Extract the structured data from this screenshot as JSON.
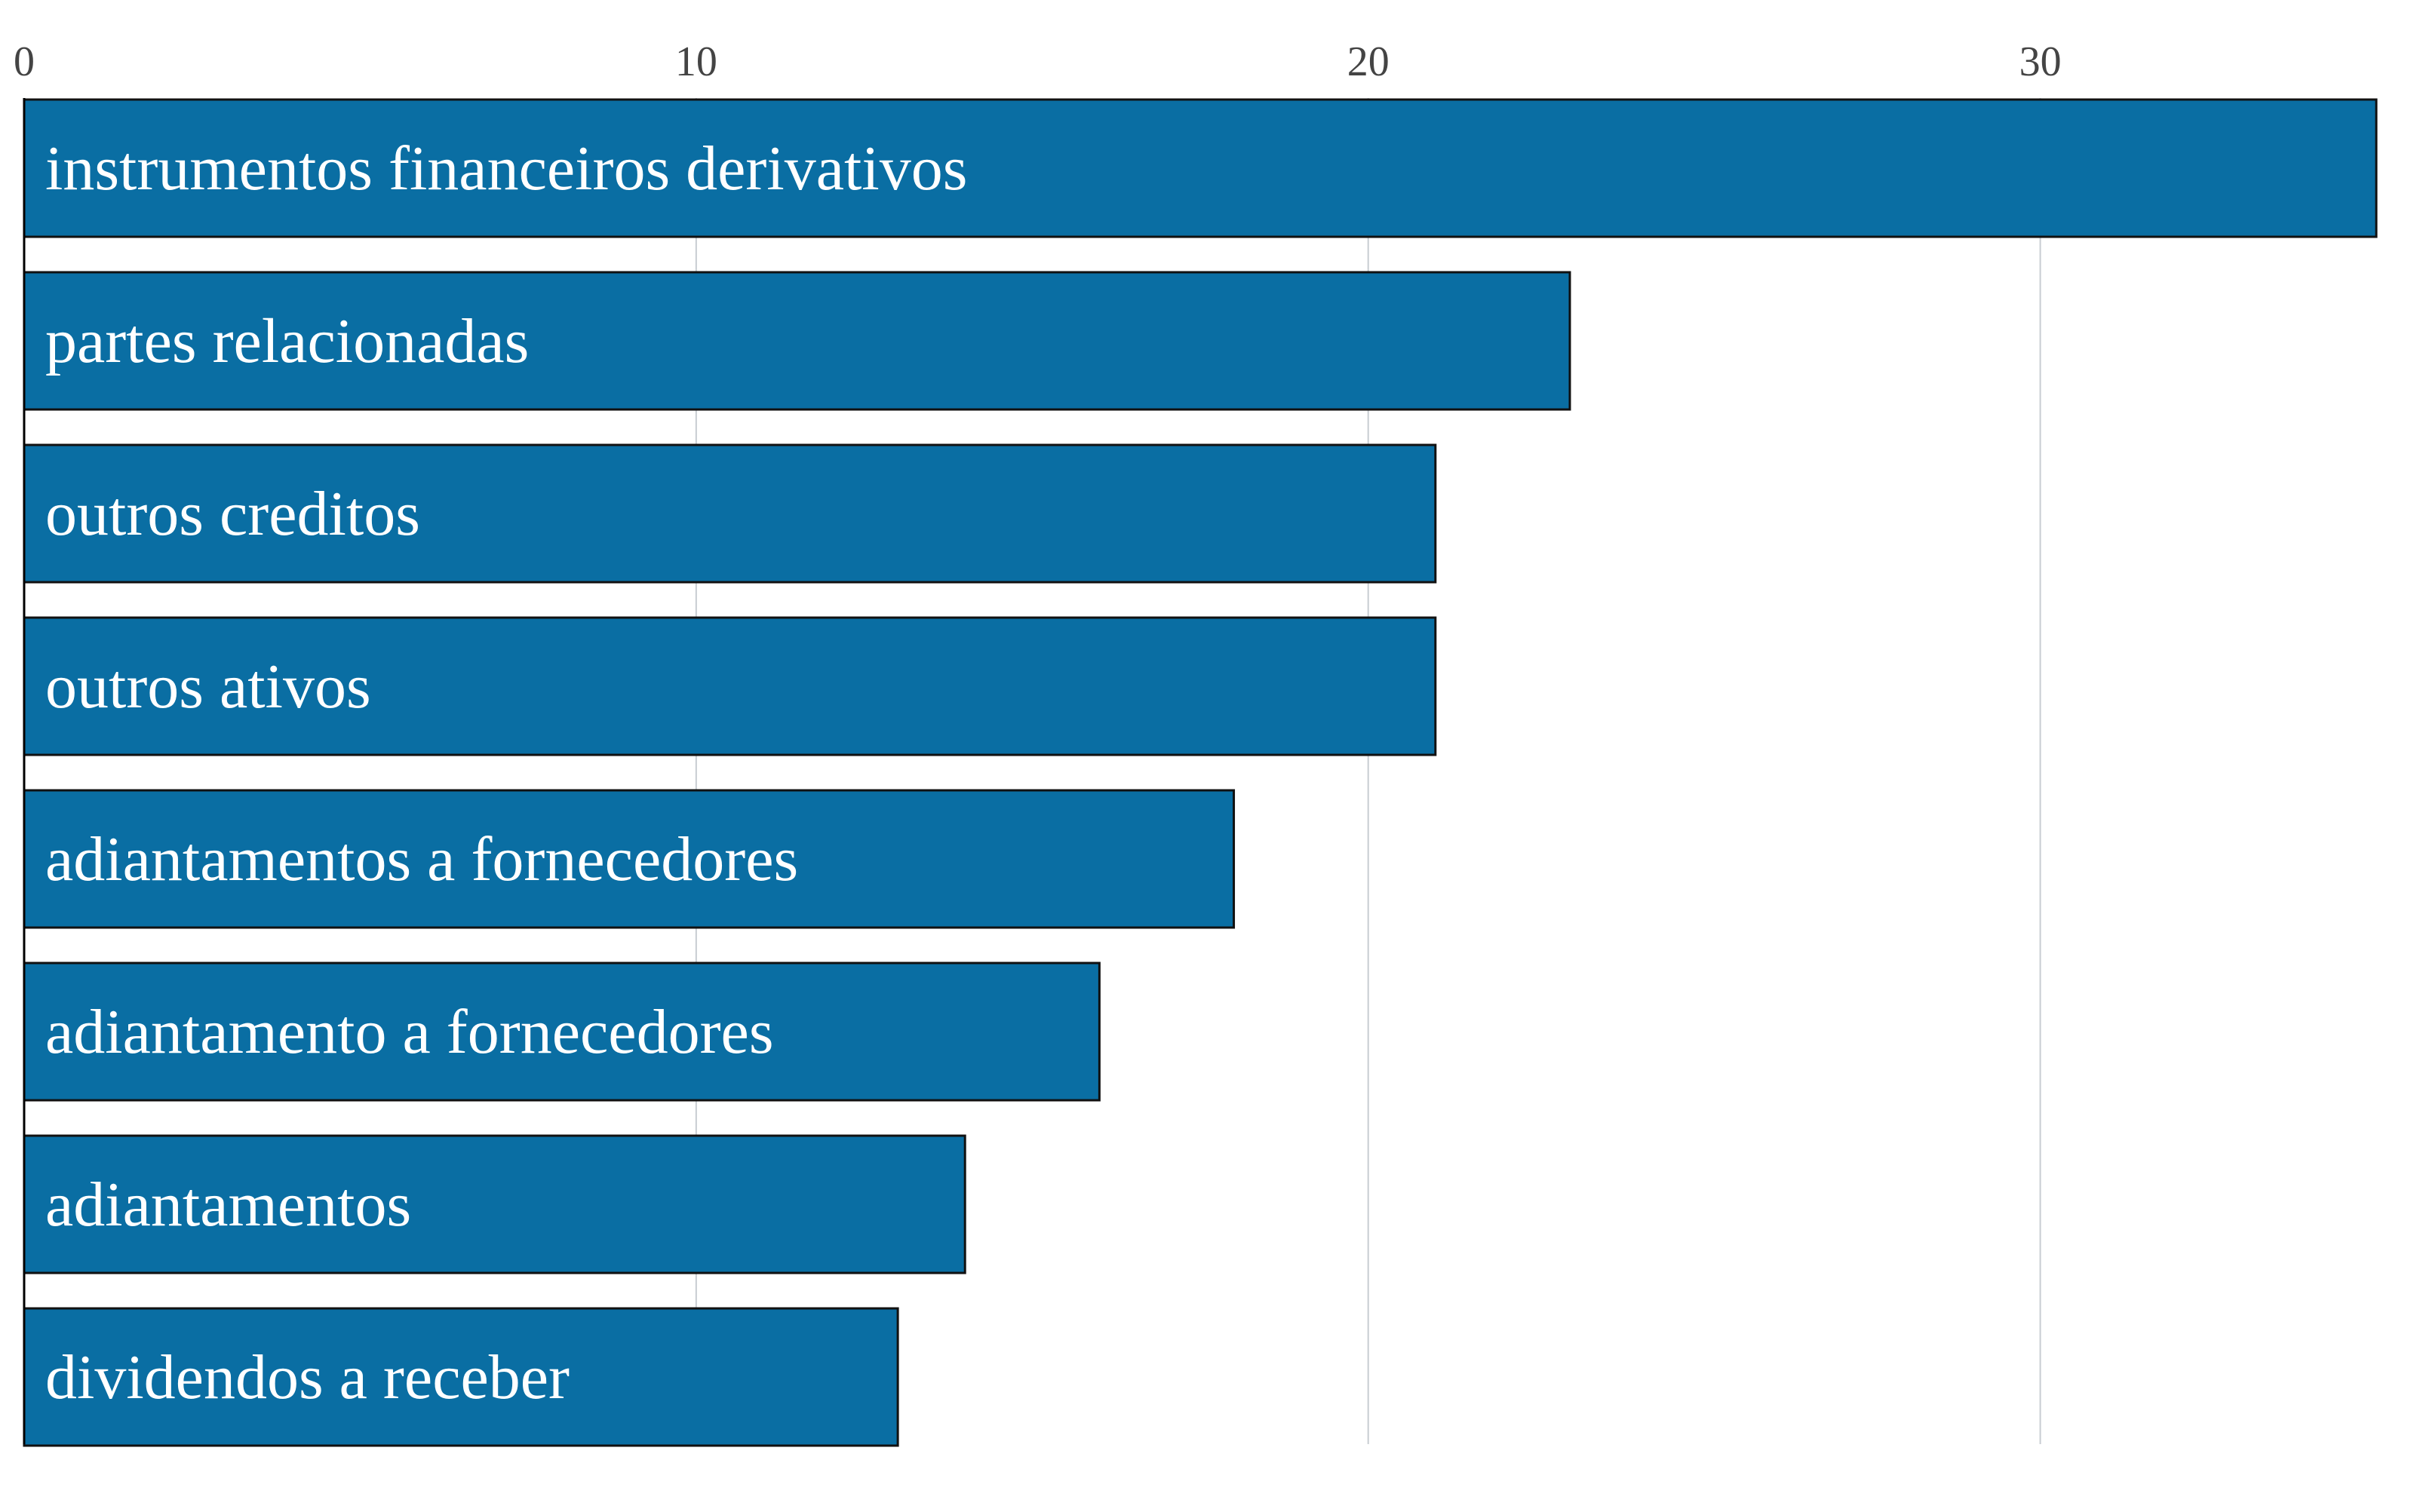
{
  "chart_data": {
    "type": "bar",
    "orientation": "horizontal",
    "categories": [
      "instrumentos financeiros derivativos",
      "partes relacionadas",
      "outros creditos",
      "outros ativos",
      "adiantamentos a fornecedores",
      "adiantamento a fornecedores",
      "adiantamentos",
      "dividendos a receber"
    ],
    "values": [
      35,
      23,
      21,
      21,
      18,
      16,
      14,
      13
    ],
    "xlim": [
      0,
      35
    ],
    "xticks": [
      "0",
      "10",
      "20",
      "30"
    ],
    "xtick_values": [
      0,
      10,
      20,
      30
    ],
    "x_axis_position": "top",
    "grid": true,
    "title": "",
    "xlabel": "",
    "ylabel": "",
    "colors": {
      "bar": "#0a6ea3",
      "label_inside": "#ffffff",
      "label_outside": "#0a6ea3"
    }
  }
}
